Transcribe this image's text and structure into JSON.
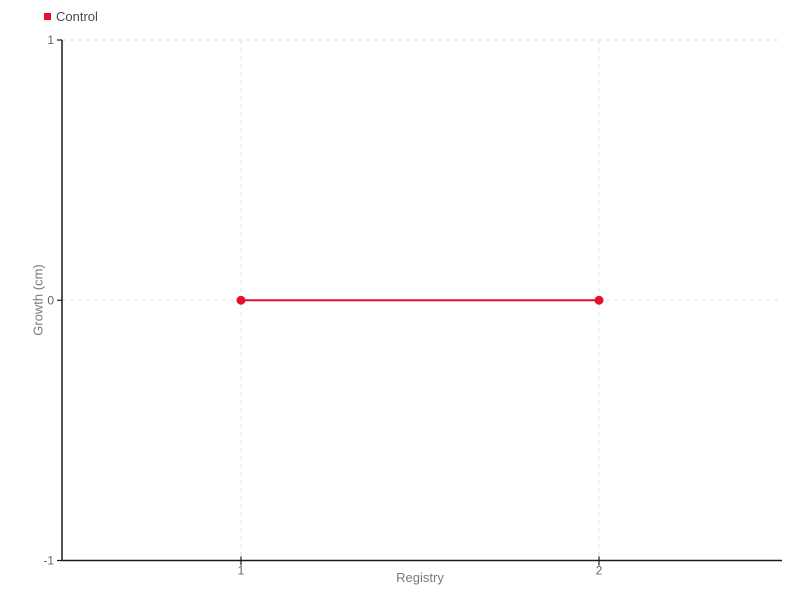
{
  "legend": {
    "items": [
      {
        "label": "Control",
        "color": "#e8112d"
      }
    ]
  },
  "chart_data": {
    "type": "line",
    "title": "",
    "xlabel": "Registry",
    "ylabel": "Growth (cm)",
    "x": [
      1,
      2
    ],
    "series": [
      {
        "name": "Control",
        "color": "#e8112d",
        "values": [
          0,
          0
        ]
      }
    ],
    "xlim": [
      0.5,
      2.5
    ],
    "ylim": [
      -1,
      1
    ],
    "x_ticks": [
      1,
      2
    ],
    "x_tick_labels": [
      "1",
      "2"
    ],
    "y_ticks": [
      -1,
      0,
      1
    ],
    "y_tick_labels": [
      "-1",
      "0",
      "1"
    ],
    "grid": {
      "show": true,
      "style": "dashed",
      "color": "#e2e2e2"
    },
    "legend_position": "top-left",
    "marker": "circle",
    "marker_radius": 4.5,
    "line_width": 2,
    "colors": {
      "axis": "#1a1a1a",
      "tick_label": "#666666",
      "axis_title": "#7a7a7a",
      "legend_text": "#4a4a4a"
    }
  }
}
